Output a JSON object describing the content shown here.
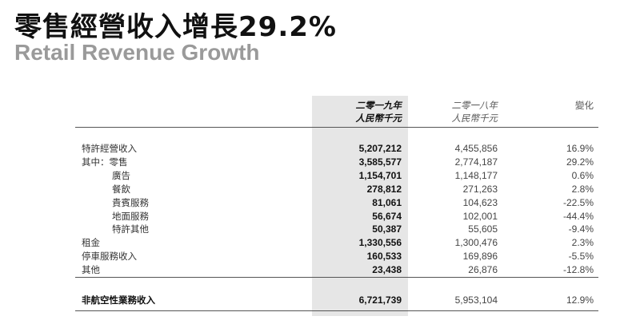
{
  "title": {
    "zh": "零售經營收入增長29.2%",
    "en": "Retail Revenue Growth"
  },
  "columns": {
    "y2019": {
      "year": "二零一九年",
      "unit": "人民幣千元"
    },
    "y2018": {
      "year": "二零一八年",
      "unit": "人民幣千元"
    },
    "change": "變化"
  },
  "rows": [
    {
      "label": "特許經營收入",
      "v2019": "5,207,212",
      "v2018": "4,455,856",
      "change": "16.9%"
    },
    {
      "label": "其中：零售",
      "v2019": "3,585,577",
      "v2018": "2,774,187",
      "change": "29.2%"
    },
    {
      "label": "廣告",
      "v2019": "1,154,701",
      "v2018": "1,148,177",
      "change": "0.6%"
    },
    {
      "label": "餐飲",
      "v2019": "278,812",
      "v2018": "271,263",
      "change": "2.8%"
    },
    {
      "label": "貴賓服務",
      "v2019": "81,061",
      "v2018": "104,623",
      "change": "-22.5%"
    },
    {
      "label": "地面服務",
      "v2019": "56,674",
      "v2018": "102,001",
      "change": "-44.4%"
    },
    {
      "label": "特許其他",
      "v2019": "50,387",
      "v2018": "55,605",
      "change": "-9.4%"
    },
    {
      "label": "租金",
      "v2019": "1,330,556",
      "v2018": "1,300,476",
      "change": "2.3%"
    },
    {
      "label": "停車服務收入",
      "v2019": "160,533",
      "v2018": "169,896",
      "change": "-5.5%"
    },
    {
      "label": "其他",
      "v2019": "23,438",
      "v2018": "26,876",
      "change": "-12.8%"
    }
  ],
  "total": {
    "label": "非航空性業務收入",
    "v2019": "6,721,739",
    "v2018": "5,953,104",
    "change": "12.9%"
  }
}
